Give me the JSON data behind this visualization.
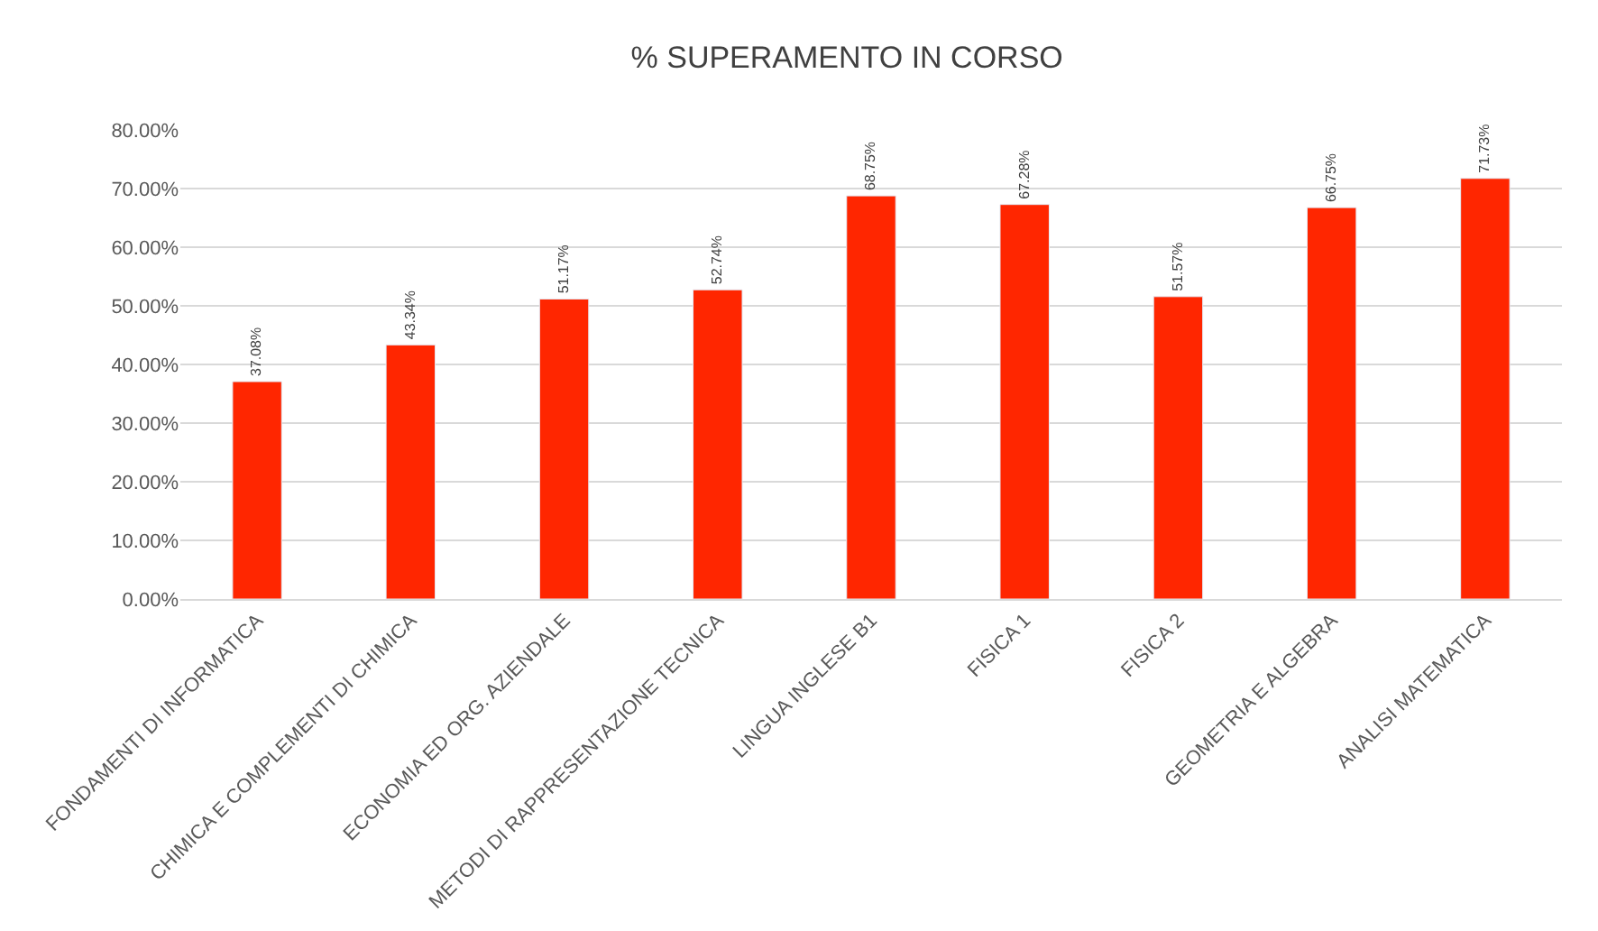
{
  "chart_data": {
    "type": "bar",
    "title": "% SUPERAMENTO IN CORSO",
    "categories": [
      "FONDAMENTI DI INFORMATICA",
      "CHIMICA E COMPLEMENTI DI CHIMICA",
      "ECONOMIA ED ORG. AZIENDALE",
      "METODI DI RAPPRESENTAZIONE TECNICA",
      "LINGUA INGLESE B1",
      "FISICA 1",
      "FISICA 2",
      "GEOMETRIA E ALGEBRA",
      "ANALISI MATEMATICA"
    ],
    "values": [
      37.08,
      43.34,
      51.17,
      52.74,
      68.75,
      67.28,
      51.57,
      66.75,
      71.73
    ],
    "value_labels": [
      "37.08%",
      "43.34%",
      "51.17%",
      "52.74%",
      "68.75%",
      "67.28%",
      "51.57%",
      "66.75%",
      "71.73%"
    ],
    "color": "#ff2600",
    "ylim": [
      0,
      80
    ],
    "yticks": [
      {
        "value": 0,
        "label": "0.00%"
      },
      {
        "value": 10,
        "label": "10.00%"
      },
      {
        "value": 20,
        "label": "20.00%"
      },
      {
        "value": 30,
        "label": "30.00%"
      },
      {
        "value": 40,
        "label": "40.00%"
      },
      {
        "value": 50,
        "label": "50.00%"
      },
      {
        "value": 60,
        "label": "60.00%"
      },
      {
        "value": 70,
        "label": "70.00%"
      },
      {
        "value": 80,
        "label": "80.00%"
      }
    ],
    "grid": "y",
    "legend": false
  }
}
